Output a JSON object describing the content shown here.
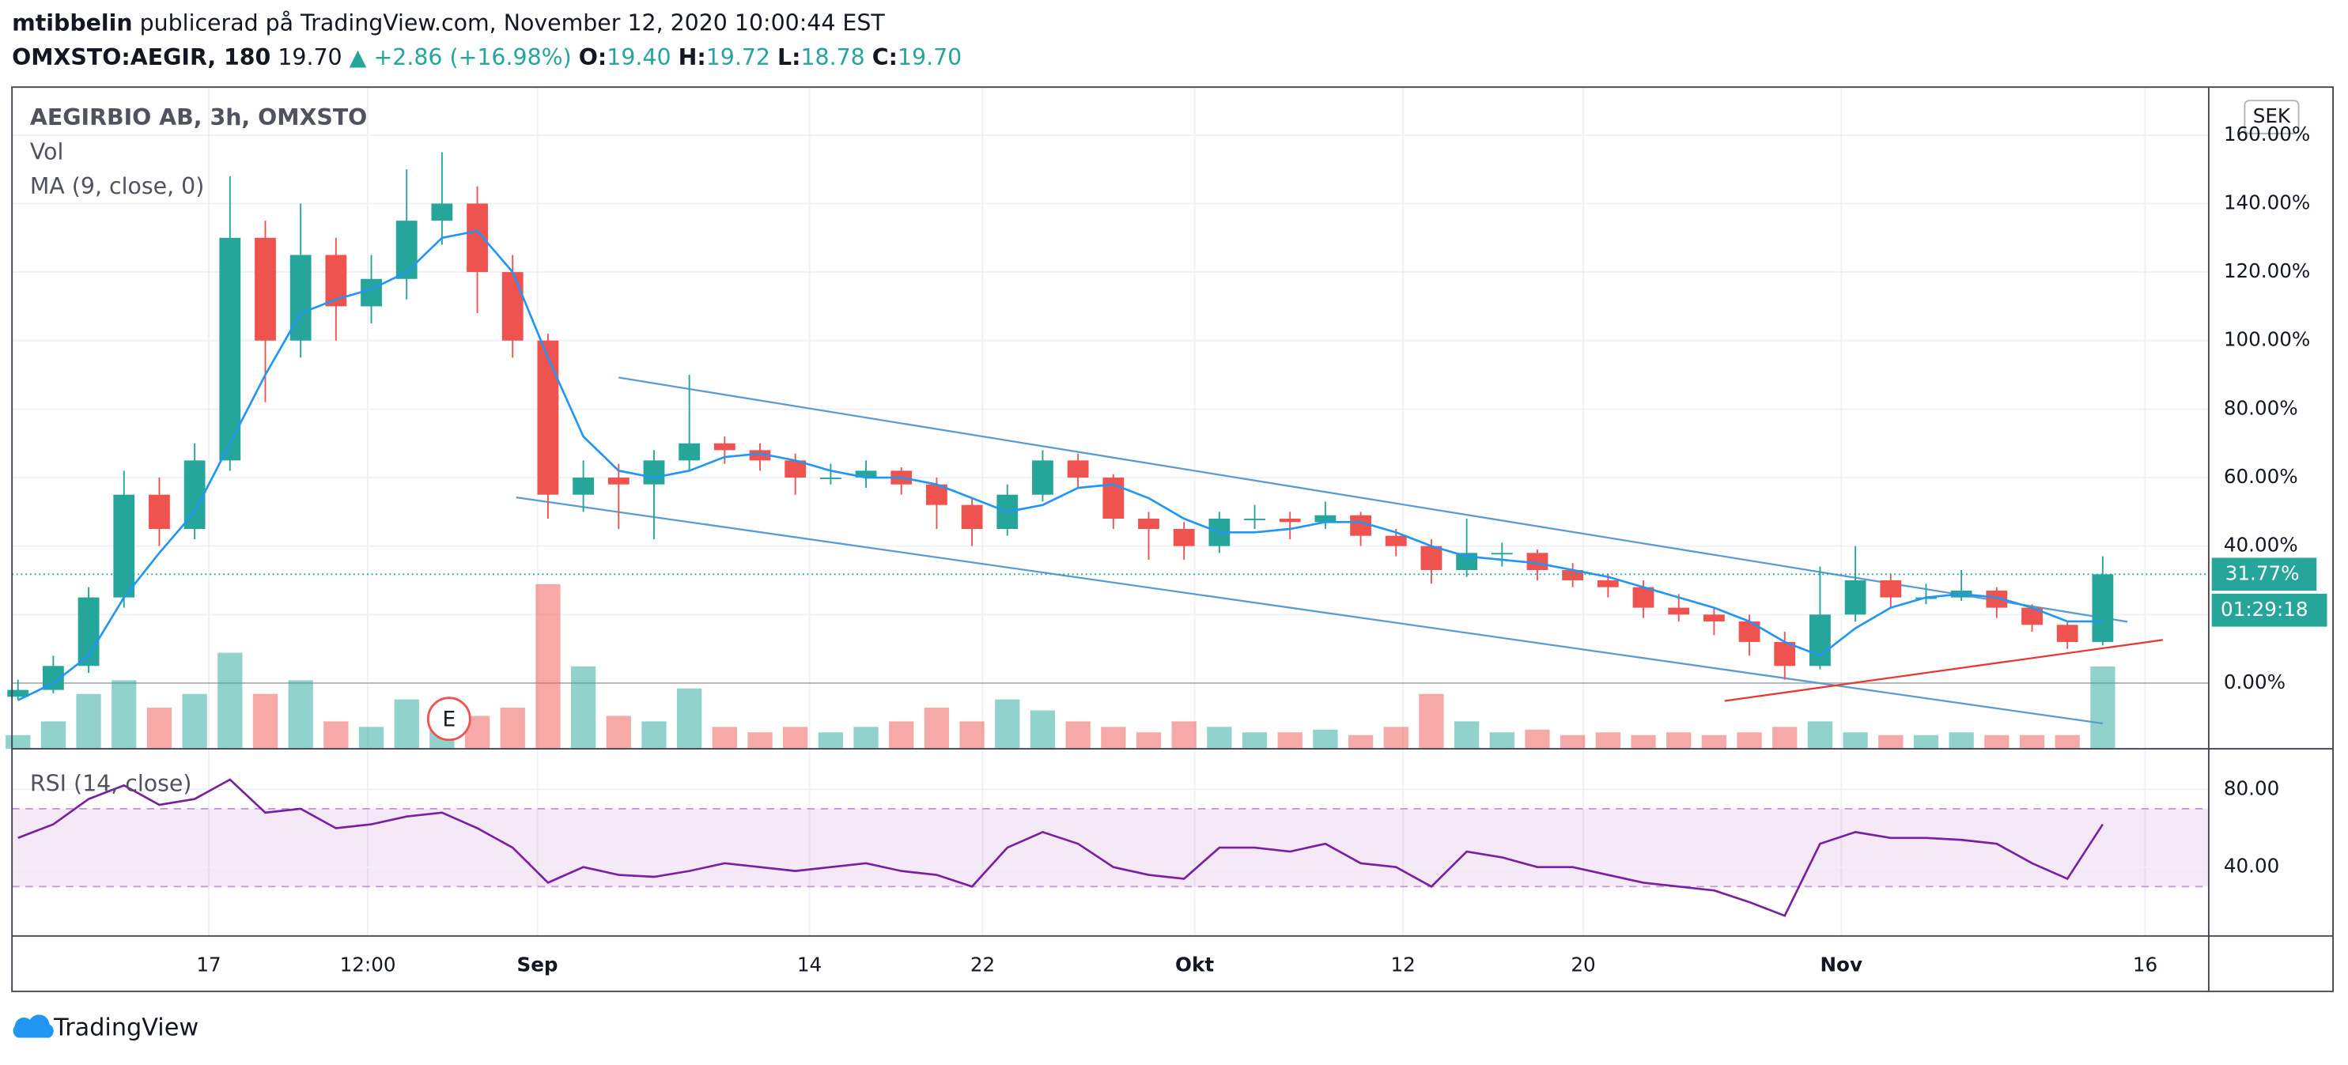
{
  "header": {
    "author": "mtibbelin",
    "published": "publicerad på TradingView.com, November 12, 2020 10:00:44 EST",
    "symbol": "OMXSTO:AEGIR, 180",
    "price": "19.70",
    "change": "▲ +2.86 (+16.98%)",
    "o_label": "O:",
    "o": "19.40",
    "h_label": "H:",
    "h": "19.72",
    "l_label": "L:",
    "l": "18.78",
    "c_label": "C:",
    "c": "19.70"
  },
  "chart_data": {
    "type": "candlestick",
    "legend": {
      "title": "AEGIRBIO AB, 3h, OMXSTO",
      "vol": "Vol",
      "ma": "MA (9, close, 0)",
      "rsi": "RSI (14, close)"
    },
    "currency": "SEK",
    "earnings_marker": "E",
    "countdown": "01:29:18",
    "price_label": {
      "value": 31.77,
      "label": "31.77%"
    },
    "up_color": "#26a69a",
    "down_color": "#ef5350",
    "ma_color": "#2196f3",
    "rsi_color": "#7b1fa2",
    "xlim": [
      0,
      62
    ],
    "xticks": [
      {
        "value": 5.4,
        "label": "17"
      },
      {
        "value": 9.9,
        "label": "12:00"
      },
      {
        "value": 14.7,
        "label": "Sep"
      },
      {
        "value": 22.4,
        "label": "14"
      },
      {
        "value": 27.3,
        "label": "22"
      },
      {
        "value": 33.3,
        "label": "Okt"
      },
      {
        "value": 39.2,
        "label": "12"
      },
      {
        "value": 44.3,
        "label": "20"
      },
      {
        "value": 51.6,
        "label": "Nov"
      },
      {
        "value": 60.2,
        "label": "16"
      }
    ],
    "ylim": [
      -19.2,
      174
    ],
    "yticks": [
      {
        "value": 0,
        "label": "0.00%"
      },
      {
        "value": 20,
        "label": "20.00%"
      },
      {
        "value": 40,
        "label": "40.00%"
      },
      {
        "value": 60,
        "label": "60.00%"
      },
      {
        "value": 80,
        "label": "80.00%"
      },
      {
        "value": 100,
        "label": "100.00%"
      },
      {
        "value": 120,
        "label": "120.00%"
      },
      {
        "value": 140,
        "label": "140.00%"
      },
      {
        "value": 160,
        "label": "160.00%"
      }
    ],
    "rsi_ylim": [
      4.6,
      100.8
    ],
    "rsi_yticks": [
      {
        "value": 40,
        "label": "40.00"
      },
      {
        "value": 80,
        "label": "80.00"
      }
    ],
    "rsi_band": [
      30,
      70
    ],
    "candles": [
      [
        -4,
        1,
        -5,
        -2
      ],
      [
        -2,
        8,
        -3,
        5
      ],
      [
        5,
        28,
        3,
        25
      ],
      [
        25,
        62,
        22,
        55
      ],
      [
        55,
        60,
        40,
        45
      ],
      [
        45,
        70,
        42,
        65
      ],
      [
        65,
        148,
        62,
        130
      ],
      [
        130,
        135,
        82,
        100
      ],
      [
        100,
        140,
        95,
        125
      ],
      [
        125,
        130,
        100,
        110
      ],
      [
        110,
        125,
        105,
        118
      ],
      [
        118,
        150,
        112,
        135
      ],
      [
        135,
        155,
        128,
        140
      ],
      [
        140,
        145,
        108,
        120
      ],
      [
        120,
        125,
        95,
        100
      ],
      [
        100,
        102,
        48,
        55
      ],
      [
        55,
        65,
        50,
        60
      ],
      [
        60,
        64,
        45,
        58
      ],
      [
        58,
        68,
        42,
        65
      ],
      [
        65,
        90,
        62,
        70
      ],
      [
        70,
        72,
        64,
        68
      ],
      [
        68,
        70,
        62,
        65
      ],
      [
        65,
        67,
        55,
        60
      ],
      [
        60,
        64,
        58,
        60
      ],
      [
        60,
        65,
        57,
        62
      ],
      [
        62,
        63,
        55,
        58
      ],
      [
        58,
        60,
        45,
        52
      ],
      [
        52,
        54,
        40,
        45
      ],
      [
        45,
        58,
        43,
        55
      ],
      [
        55,
        68,
        53,
        65
      ],
      [
        65,
        67,
        57,
        60
      ],
      [
        60,
        61,
        45,
        48
      ],
      [
        48,
        50,
        36,
        45
      ],
      [
        45,
        47,
        36,
        40
      ],
      [
        40,
        50,
        38,
        48
      ],
      [
        48,
        52,
        45,
        48
      ],
      [
        48,
        50,
        42,
        47
      ],
      [
        47,
        53,
        45,
        49
      ],
      [
        49,
        50,
        40,
        43
      ],
      [
        43,
        45,
        37,
        40
      ],
      [
        40,
        42,
        29,
        33
      ],
      [
        33,
        48,
        31,
        38
      ],
      [
        38,
        41,
        34,
        38
      ],
      [
        38,
        39,
        30,
        33
      ],
      [
        33,
        35,
        28,
        30
      ],
      [
        30,
        32,
        25,
        28
      ],
      [
        28,
        30,
        19,
        22
      ],
      [
        22,
        26,
        18,
        20
      ],
      [
        20,
        22,
        14,
        18
      ],
      [
        18,
        20,
        8,
        12
      ],
      [
        12,
        15,
        1,
        5
      ],
      [
        5,
        34,
        4,
        20
      ],
      [
        20,
        40,
        18,
        30
      ],
      [
        30,
        32,
        22,
        25
      ],
      [
        25,
        29,
        23,
        25
      ],
      [
        25,
        33,
        24,
        27
      ],
      [
        27,
        28,
        19,
        22
      ],
      [
        22,
        23,
        15,
        17
      ],
      [
        17,
        18,
        10,
        12
      ],
      [
        12,
        37,
        11,
        31.77
      ]
    ],
    "volume": [
      5,
      10,
      20,
      25,
      15,
      20,
      35,
      20,
      25,
      10,
      8,
      18,
      10,
      12,
      15,
      60,
      30,
      12,
      10,
      22,
      8,
      6,
      8,
      6,
      8,
      10,
      15,
      10,
      18,
      14,
      10,
      8,
      6,
      10,
      8,
      6,
      6,
      7,
      5,
      8,
      20,
      10,
      6,
      7,
      5,
      6,
      5,
      6,
      5,
      6,
      8,
      10,
      6,
      5,
      5,
      6,
      5,
      5,
      5,
      30
    ],
    "ma": [
      -5,
      0,
      8,
      25,
      38,
      50,
      70,
      90,
      108,
      112,
      115,
      120,
      130,
      132,
      120,
      95,
      72,
      62,
      60,
      62,
      66,
      67,
      65,
      62,
      60,
      60,
      58,
      54,
      50,
      52,
      57,
      58,
      54,
      48,
      44,
      44,
      45,
      47,
      47,
      44,
      40,
      37,
      36,
      35,
      33,
      31,
      28,
      25,
      22,
      18,
      12,
      8,
      16,
      22,
      25,
      26,
      25,
      22,
      18,
      18
    ],
    "rsi": [
      55,
      62,
      75,
      82,
      72,
      75,
      85,
      68,
      70,
      60,
      62,
      66,
      68,
      60,
      50,
      32,
      40,
      36,
      35,
      38,
      42,
      40,
      38,
      40,
      42,
      38,
      36,
      30,
      50,
      58,
      52,
      40,
      36,
      34,
      50,
      50,
      48,
      52,
      42,
      40,
      30,
      48,
      45,
      40,
      40,
      36,
      32,
      30,
      28,
      22,
      15,
      52,
      58,
      55,
      55,
      54,
      52,
      42,
      34,
      62
    ],
    "trendlines": [
      {
        "color": "#5b9bd5",
        "points": [
          [
            17.0,
            89.2
          ],
          [
            59.7,
            17.9
          ]
        ]
      },
      {
        "color": "#5b9bd5",
        "points": [
          [
            14.1,
            54.2
          ],
          [
            59.0,
            -11.8
          ]
        ]
      },
      {
        "color": "#e53935",
        "points": [
          [
            48.3,
            -5.2
          ],
          [
            60.7,
            12.6
          ]
        ]
      }
    ],
    "earnings_index": 12.2
  },
  "footer": {
    "brand": "TradingView"
  }
}
